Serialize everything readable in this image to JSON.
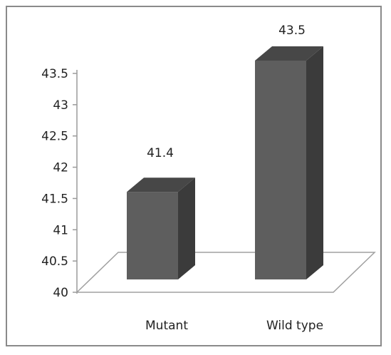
{
  "chart_data": {
    "type": "bar",
    "style": "3d-column",
    "categories": [
      "Mutant",
      "Wild type"
    ],
    "values": [
      41.4,
      43.5
    ],
    "data_labels": [
      "41.4",
      "43.5"
    ],
    "title": "",
    "xlabel": "",
    "ylabel": "",
    "ylim": [
      40,
      43.5
    ],
    "yticks": [
      "40",
      "40.5",
      "41",
      "41.5",
      "42",
      "42.5",
      "43",
      "43.5"
    ],
    "grid": false,
    "legend": "none",
    "colors": {
      "bar_front": "#5e5e5e",
      "bar_side": "#3b3b3b",
      "bar_top": "#474747",
      "floor": "#ffffff",
      "floor_edge": "#a0a0a0",
      "frame": "#8a8a8a"
    }
  }
}
